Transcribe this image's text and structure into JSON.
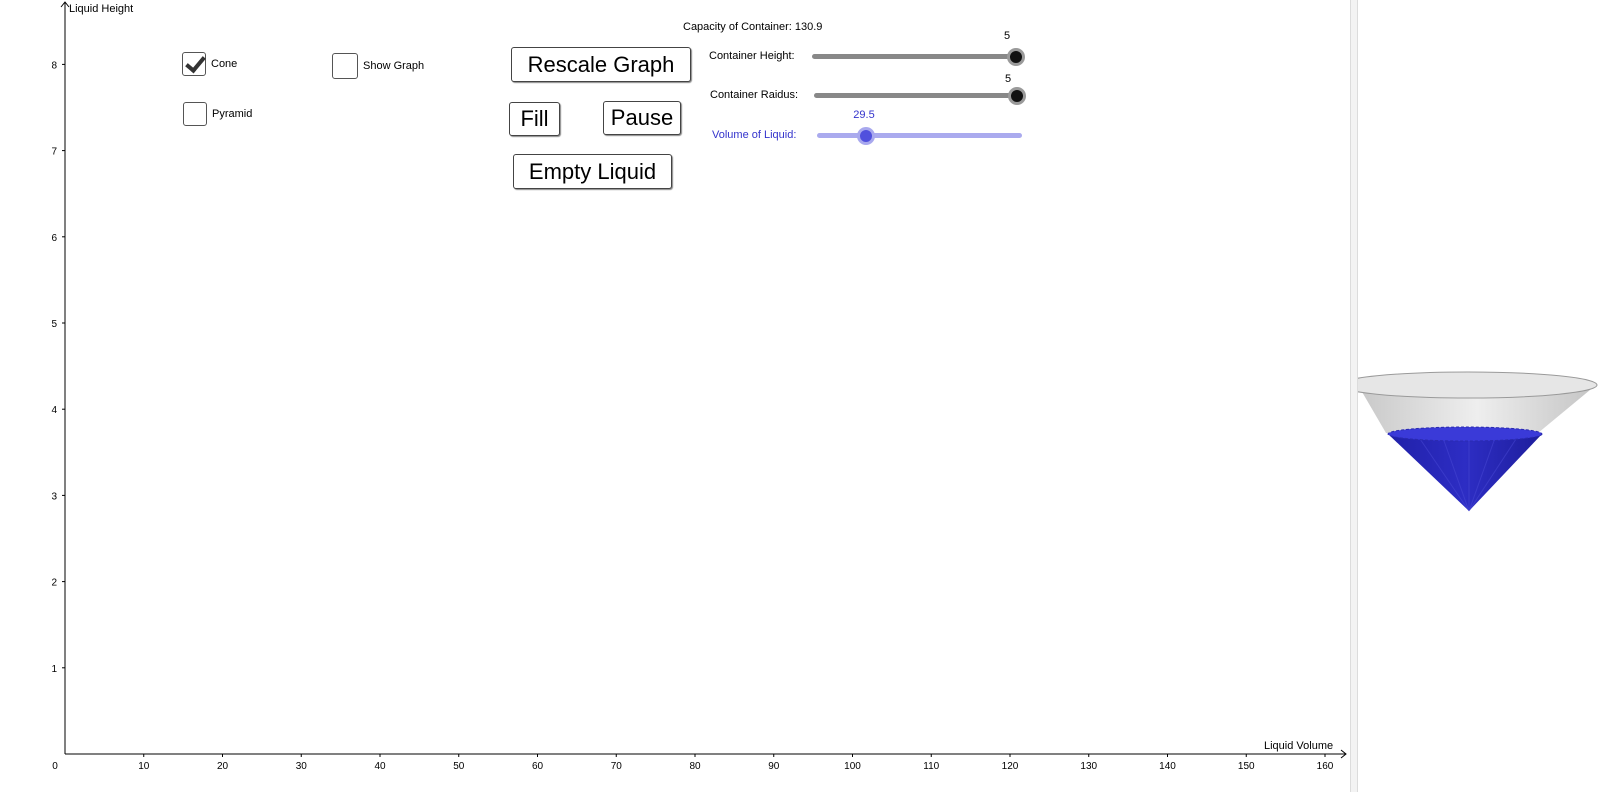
{
  "graph": {
    "y_axis_label": "Liquid Height",
    "x_axis_label": "Liquid Volume",
    "x_ticks": [
      "0",
      "10",
      "20",
      "30",
      "40",
      "50",
      "60",
      "70",
      "80",
      "90",
      "100",
      "110",
      "120",
      "130",
      "140",
      "150",
      "160"
    ],
    "y_ticks": [
      "1",
      "2",
      "3",
      "4",
      "5",
      "6",
      "7",
      "8"
    ]
  },
  "checkboxes": {
    "cone": {
      "label": "Cone",
      "checked": true
    },
    "pyramid": {
      "label": "Pyramid",
      "checked": false
    },
    "show_graph": {
      "label": "Show Graph",
      "checked": false
    }
  },
  "buttons": {
    "rescale": "Rescale Graph",
    "fill": "Fill",
    "pause": "Pause",
    "empty": "Empty Liquid"
  },
  "capacity": {
    "label": "Capacity of Container: 130.9"
  },
  "sliders": {
    "height": {
      "label": "Container Height:",
      "value": "5",
      "min": 0,
      "max": 5
    },
    "radius": {
      "label": "Container Raidus:",
      "value": "5",
      "min": 0,
      "max": 5
    },
    "volume": {
      "label": "Volume of Liquid:",
      "value": "29.5",
      "min": 0,
      "max": 130.9
    }
  },
  "colors": {
    "liquid": "#2b2bc0",
    "container": "#d8d8d8",
    "accent_blue": "#3333cc"
  }
}
